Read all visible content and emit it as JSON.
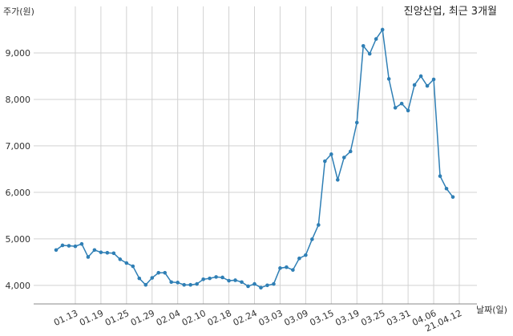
{
  "chart_data": {
    "type": "line",
    "title": "진양산업, 최근 3개월",
    "xlabel": "날짜(일)",
    "ylabel": "주가(원)",
    "ylim": [
      3600,
      10000
    ],
    "yticks": [
      4000,
      5000,
      6000,
      7000,
      8000,
      9000
    ],
    "ytick_labels": [
      "4,000",
      "5,000",
      "6,000",
      "7,000",
      "8,000",
      "9,000"
    ],
    "xtick_labels": [
      "01.13",
      "01.19",
      "01.25",
      "01.29",
      "02.04",
      "02.10",
      "02.18",
      "02.24",
      "03.03",
      "03.09",
      "03.15",
      "03.19",
      "03.25",
      "03.31",
      "04.06",
      "21.04.12"
    ],
    "xtick_index": [
      3,
      7,
      11,
      15,
      19,
      23,
      27,
      31,
      35,
      39,
      43,
      47,
      51,
      55,
      59,
      63
    ],
    "grid": true,
    "legend": "none",
    "line_color": "#2f7fb5",
    "series": [
      {
        "name": "",
        "values": [
          4760,
          4860,
          4850,
          4840,
          4890,
          4610,
          4760,
          4710,
          4700,
          4690,
          4560,
          4480,
          4410,
          4150,
          4010,
          4160,
          4270,
          4270,
          4070,
          4060,
          4010,
          4010,
          4030,
          4130,
          4150,
          4180,
          4170,
          4100,
          4110,
          4070,
          3980,
          4030,
          3950,
          4000,
          4030,
          4370,
          4390,
          4330,
          4580,
          4650,
          4990,
          5300,
          6670,
          6820,
          6270,
          6750,
          6880,
          7500,
          9150,
          8980,
          9300,
          9500,
          8440,
          7820,
          7910,
          7760,
          8310,
          8500,
          8290,
          8430,
          6350,
          6080,
          5900
        ]
      }
    ]
  }
}
